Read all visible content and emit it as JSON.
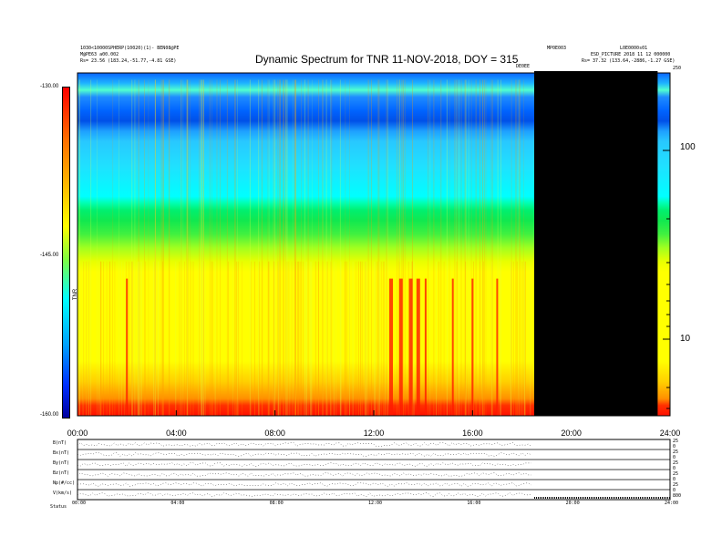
{
  "header": {
    "title": "Dynamic Spectrum for TNR 11-NOV-2018, DOY = 315",
    "left_line1": "1030<10000SPHERP(10020)(1)- BEN08@PE",
    "left_line2": "M@PE63 a00.002",
    "left_line3": "Rs= 23.56 (183.24,-51.77,-4.81 GSE)",
    "right_line1": "MP0E003",
    "right_line2": "L0E0000s01",
    "right_line3": "ESD_PICTURE 2018 11 12 000000",
    "right_line4": "Rs= 37.32 (133.64,-2886,-1.27 GSE)",
    "gap_label": "DE0EE"
  },
  "chart_data": {
    "type": "heatmap",
    "title": "Dynamic Spectrum for TNR 11-NOV-2018, DOY = 315",
    "x_tick_labels": [
      "00:00",
      "04:00",
      "08:00",
      "12:00",
      "16:00",
      "20:00",
      "24:00"
    ],
    "x_hours": [
      0,
      4,
      8,
      12,
      16,
      20,
      24
    ],
    "xlim_hours": [
      0,
      24
    ],
    "colorbar": {
      "label": "TNR",
      "tick_labels": [
        "-130.00",
        "-145.00",
        "-160.00"
      ],
      "tick_values": [
        -130,
        -145,
        -160
      ],
      "range": [
        -160,
        -130
      ]
    },
    "y_right_tick_labels": [
      "100",
      "10"
    ],
    "y_right_tick_values": [
      100,
      10
    ],
    "y_right_scale": "log",
    "y_right_top_label": "250",
    "data_gap_hours": [
      18.5,
      23.5
    ],
    "event_hours": [
      2.0,
      12.7,
      13.1,
      13.5,
      13.8,
      14.1,
      15.2,
      16.0,
      17.0
    ]
  },
  "lower_panel": {
    "row_labels": [
      "B(nT)",
      "Bx(nT)",
      "By(nT)",
      "Bz(nT)",
      "Np(#/cc)",
      "V(km/s)"
    ],
    "right_labels": [
      "25",
      "0",
      "25",
      "0",
      "25",
      "0",
      "25",
      "0",
      "25",
      "0",
      "800"
    ],
    "x_tick_labels": [
      "00:00",
      "04:00",
      "08:00",
      "12:00",
      "16:00",
      "20:00",
      "24:00"
    ],
    "footer_label": "Status"
  },
  "colors": {
    "red": "#ff2000",
    "orange": "#ff8c00",
    "yellow": "#ffff00",
    "green": "#00e040",
    "cyan": "#00ffff",
    "blue": "#0050ff",
    "gap": "#000000"
  }
}
